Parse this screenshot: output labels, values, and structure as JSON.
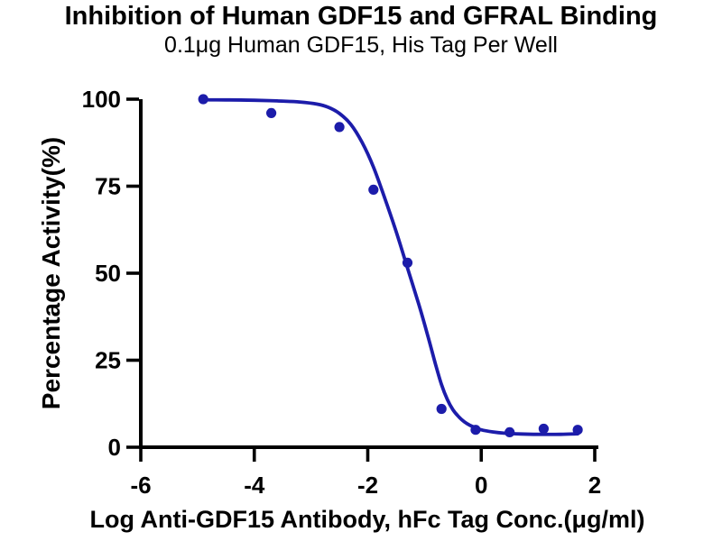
{
  "header": {
    "title": "Inhibition of Human GDF15 and GFRAL Binding",
    "subtitle": "0.1μg Human GDF15, His Tag Per Well"
  },
  "chart_data": {
    "type": "scatter",
    "fit": "sigmoidal dose-response inhibition curve",
    "title": "Inhibition of Human GDF15 and GFRAL Binding",
    "subtitle": "0.1μg Human GDF15, His Tag Per Well",
    "xlabel": "Log Anti-GDF15 Antibody, hFc Tag Conc.(μg/ml)",
    "ylabel": "Percentage Activity(%)",
    "xlim": [
      -6,
      2
    ],
    "ylim": [
      0,
      100
    ],
    "x_ticks": [
      -6,
      -4,
      -2,
      0,
      2
    ],
    "y_ticks": [
      0,
      25,
      50,
      75,
      100
    ],
    "grid": false,
    "legend": "none",
    "colors": {
      "marker": "#1c1caa",
      "curve": "#1c1caa",
      "axis": "#000000",
      "text": "#000000"
    },
    "series": [
      {
        "name": "Anti-GDF15 Antibody, hFc Tag",
        "marker": "circle",
        "points": [
          {
            "x": -4.9,
            "y": 100
          },
          {
            "x": -3.7,
            "y": 96
          },
          {
            "x": -2.5,
            "y": 92
          },
          {
            "x": -1.9,
            "y": 74
          },
          {
            "x": -1.3,
            "y": 53
          },
          {
            "x": -0.7,
            "y": 11
          },
          {
            "x": -0.1,
            "y": 5
          },
          {
            "x": 0.5,
            "y": 4.3
          },
          {
            "x": 1.1,
            "y": 5.3
          },
          {
            "x": 1.7,
            "y": 5
          }
        ]
      }
    ],
    "fit_curve": [
      [
        -4.93,
        99.8
      ],
      [
        -4.5,
        99.8
      ],
      [
        -4.0,
        99.7
      ],
      [
        -3.6,
        99.5
      ],
      [
        -3.2,
        99.2
      ],
      [
        -2.9,
        98.6
      ],
      [
        -2.7,
        97.7
      ],
      [
        -2.5,
        95.9
      ],
      [
        -2.3,
        92.8
      ],
      [
        -2.1,
        87.6
      ],
      [
        -1.9,
        80.5
      ],
      [
        -1.7,
        71.5
      ],
      [
        -1.5,
        62.0
      ],
      [
        -1.3,
        51.5
      ],
      [
        -1.1,
        41.0
      ],
      [
        -0.95,
        32.5
      ],
      [
        -0.8,
        23.5
      ],
      [
        -0.7,
        18.0
      ],
      [
        -0.6,
        13.8
      ],
      [
        -0.5,
        10.8
      ],
      [
        -0.4,
        8.8
      ],
      [
        -0.3,
        7.3
      ],
      [
        -0.2,
        6.3
      ],
      [
        -0.1,
        5.6
      ],
      [
        0.0,
        5.0
      ],
      [
        0.2,
        4.4
      ],
      [
        0.4,
        4.05
      ],
      [
        0.7,
        3.8
      ],
      [
        1.0,
        3.7
      ],
      [
        1.4,
        3.7
      ],
      [
        1.7,
        3.85
      ]
    ]
  }
}
